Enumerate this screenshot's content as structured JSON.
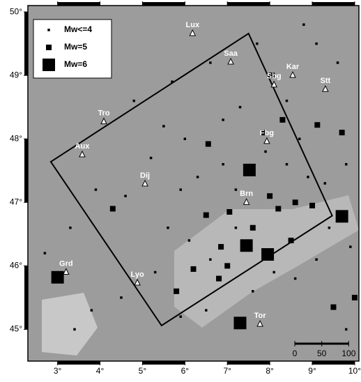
{
  "map": {
    "lonlim": [
      2.3,
      10.1
    ],
    "latlim": [
      44.5,
      50.1
    ],
    "xticks": [
      {
        "value": 3,
        "label": "3°"
      },
      {
        "value": 4,
        "label": "4°"
      },
      {
        "value": 5,
        "label": "5°"
      },
      {
        "value": 6,
        "label": "6°"
      },
      {
        "value": 7,
        "label": "7°"
      },
      {
        "value": 8,
        "label": "8°"
      },
      {
        "value": 9,
        "label": "9°"
      },
      {
        "value": 10,
        "label": "10°"
      }
    ],
    "yticks": [
      {
        "value": 45,
        "label": "45°"
      },
      {
        "value": 46,
        "label": "46°"
      },
      {
        "value": 47,
        "label": "47°"
      },
      {
        "value": 48,
        "label": "48°"
      },
      {
        "value": 49,
        "label": "49°"
      },
      {
        "value": 50,
        "label": "50°"
      }
    ],
    "legend": [
      {
        "label": "Mw<=4",
        "mw": 4
      },
      {
        "label": "Mw=5",
        "mw": 5
      },
      {
        "label": "Mw=6",
        "mw": 6
      }
    ],
    "region": [
      [
        2.84,
        47.64
      ],
      [
        7.5,
        49.66
      ],
      [
        9.47,
        46.79
      ],
      [
        5.45,
        45.06
      ]
    ],
    "stations": [
      {
        "name": "Lux",
        "lon": 6.18,
        "lat": 49.66
      },
      {
        "name": "Saa",
        "lon": 7.08,
        "lat": 49.21
      },
      {
        "name": "Kar",
        "lon": 8.54,
        "lat": 49.0
      },
      {
        "name": "Stt",
        "lon": 9.31,
        "lat": 48.78
      },
      {
        "name": "Sbg",
        "lon": 8.1,
        "lat": 48.85
      },
      {
        "name": "Tro",
        "lon": 4.09,
        "lat": 48.27
      },
      {
        "name": "Aux",
        "lon": 3.58,
        "lat": 47.75
      },
      {
        "name": "Dij",
        "lon": 5.06,
        "lat": 47.29
      },
      {
        "name": "Fbg",
        "lon": 7.93,
        "lat": 47.96
      },
      {
        "name": "Brn",
        "lon": 7.45,
        "lat": 47.0
      },
      {
        "name": "Lyo",
        "lon": 4.88,
        "lat": 45.73
      },
      {
        "name": "Tor",
        "lon": 7.77,
        "lat": 45.08
      },
      {
        "name": "Grd",
        "lon": 3.2,
        "lat": 45.9
      }
    ],
    "events": [
      {
        "lon": 7.52,
        "lat": 47.51,
        "mw": 6
      },
      {
        "lon": 7.45,
        "lat": 46.32,
        "mw": 6
      },
      {
        "lon": 7.95,
        "lat": 46.18,
        "mw": 6
      },
      {
        "lon": 9.7,
        "lat": 46.78,
        "mw": 6
      },
      {
        "lon": 3.0,
        "lat": 45.82,
        "mw": 6
      },
      {
        "lon": 7.3,
        "lat": 45.1,
        "mw": 6
      },
      {
        "lon": 6.55,
        "lat": 47.92,
        "mw": 5
      },
      {
        "lon": 9.12,
        "lat": 48.22,
        "mw": 5
      },
      {
        "lon": 7.05,
        "lat": 46.85,
        "mw": 5
      },
      {
        "lon": 6.5,
        "lat": 46.8,
        "mw": 5
      },
      {
        "lon": 8.2,
        "lat": 46.9,
        "mw": 5
      },
      {
        "lon": 9.0,
        "lat": 46.95,
        "mw": 5
      },
      {
        "lon": 8.6,
        "lat": 47.0,
        "mw": 5
      },
      {
        "lon": 6.85,
        "lat": 46.3,
        "mw": 5
      },
      {
        "lon": 6.2,
        "lat": 45.95,
        "mw": 5
      },
      {
        "lon": 5.8,
        "lat": 45.6,
        "mw": 5
      },
      {
        "lon": 9.5,
        "lat": 45.35,
        "mw": 5
      },
      {
        "lon": 10.0,
        "lat": 45.5,
        "mw": 5
      },
      {
        "lon": 7.0,
        "lat": 46.0,
        "mw": 5
      },
      {
        "lon": 8.0,
        "lat": 47.1,
        "mw": 5
      },
      {
        "lon": 8.05,
        "lat": 49.0,
        "mw": 5
      },
      {
        "lon": 7.85,
        "lat": 48.1,
        "mw": 5
      },
      {
        "lon": 8.3,
        "lat": 48.3,
        "mw": 5
      },
      {
        "lon": 9.7,
        "lat": 48.1,
        "mw": 5
      },
      {
        "lon": 4.3,
        "lat": 46.9,
        "mw": 5
      },
      {
        "lon": 6.8,
        "lat": 45.8,
        "mw": 5
      },
      {
        "lon": 8.5,
        "lat": 46.4,
        "mw": 5
      },
      {
        "lon": 7.6,
        "lat": 46.6,
        "mw": 5
      },
      {
        "lon": 8.8,
        "lat": 49.8,
        "mw": 4
      },
      {
        "lon": 9.1,
        "lat": 49.5,
        "mw": 4
      },
      {
        "lon": 9.6,
        "lat": 49.2,
        "mw": 4
      },
      {
        "lon": 8.4,
        "lat": 48.6,
        "mw": 4
      },
      {
        "lon": 7.3,
        "lat": 48.5,
        "mw": 4
      },
      {
        "lon": 6.9,
        "lat": 48.3,
        "mw": 4
      },
      {
        "lon": 6.0,
        "lat": 48.0,
        "mw": 4
      },
      {
        "lon": 5.5,
        "lat": 48.2,
        "mw": 4
      },
      {
        "lon": 4.8,
        "lat": 48.6,
        "mw": 4
      },
      {
        "lon": 5.2,
        "lat": 47.7,
        "mw": 4
      },
      {
        "lon": 4.6,
        "lat": 47.1,
        "mw": 4
      },
      {
        "lon": 5.9,
        "lat": 47.2,
        "mw": 4
      },
      {
        "lon": 6.3,
        "lat": 47.4,
        "mw": 4
      },
      {
        "lon": 6.9,
        "lat": 47.6,
        "mw": 4
      },
      {
        "lon": 7.2,
        "lat": 47.2,
        "mw": 4
      },
      {
        "lon": 8.4,
        "lat": 47.6,
        "mw": 4
      },
      {
        "lon": 8.9,
        "lat": 47.4,
        "mw": 4
      },
      {
        "lon": 9.3,
        "lat": 47.3,
        "mw": 4
      },
      {
        "lon": 9.8,
        "lat": 47.6,
        "mw": 4
      },
      {
        "lon": 9.9,
        "lat": 46.3,
        "mw": 4
      },
      {
        "lon": 9.1,
        "lat": 46.1,
        "mw": 4
      },
      {
        "lon": 8.6,
        "lat": 45.8,
        "mw": 4
      },
      {
        "lon": 7.6,
        "lat": 45.6,
        "mw": 4
      },
      {
        "lon": 6.5,
        "lat": 45.3,
        "mw": 4
      },
      {
        "lon": 5.9,
        "lat": 45.2,
        "mw": 4
      },
      {
        "lon": 5.3,
        "lat": 45.9,
        "mw": 4
      },
      {
        "lon": 4.5,
        "lat": 45.5,
        "mw": 4
      },
      {
        "lon": 3.8,
        "lat": 45.3,
        "mw": 4
      },
      {
        "lon": 3.4,
        "lat": 45.0,
        "mw": 4
      },
      {
        "lon": 2.7,
        "lat": 46.2,
        "mw": 4
      },
      {
        "lon": 3.3,
        "lat": 46.6,
        "mw": 4
      },
      {
        "lon": 3.9,
        "lat": 47.2,
        "mw": 4
      },
      {
        "lon": 5.6,
        "lat": 46.6,
        "mw": 4
      },
      {
        "lon": 6.1,
        "lat": 46.4,
        "mw": 4
      },
      {
        "lon": 7.9,
        "lat": 47.8,
        "mw": 4
      },
      {
        "lon": 8.7,
        "lat": 48.0,
        "mw": 4
      },
      {
        "lon": 9.4,
        "lat": 46.6,
        "mw": 4
      },
      {
        "lon": 7.2,
        "lat": 46.6,
        "mw": 4
      },
      {
        "lon": 6.6,
        "lat": 46.1,
        "mw": 4
      },
      {
        "lon": 8.1,
        "lat": 45.9,
        "mw": 4
      },
      {
        "lon": 9.8,
        "lat": 45.0,
        "mw": 4
      },
      {
        "lon": 5.7,
        "lat": 48.9,
        "mw": 4
      },
      {
        "lon": 6.6,
        "lat": 49.2,
        "mw": 4
      },
      {
        "lon": 7.7,
        "lat": 49.5,
        "mw": 4
      }
    ],
    "scale": {
      "ticks": [
        0,
        50,
        100
      ],
      "km_per_deg_lon": 78.7
    }
  }
}
